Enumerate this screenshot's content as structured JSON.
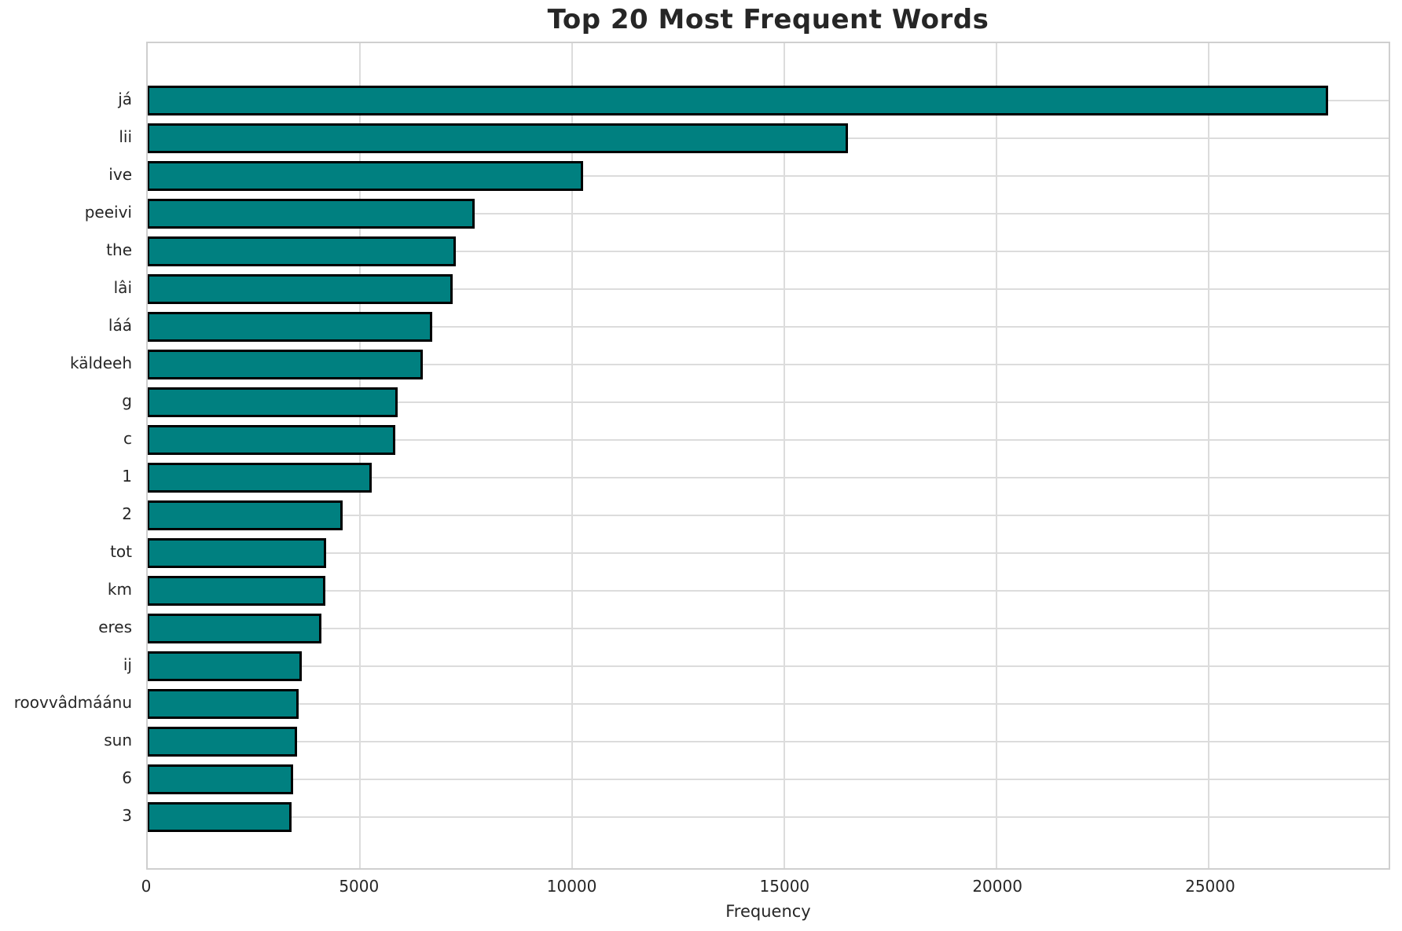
{
  "chart_data": {
    "type": "bar",
    "orientation": "horizontal",
    "title": "Top 20 Most Frequent Words",
    "xlabel": "Frequency",
    "ylabel": "",
    "categories": [
      "já",
      "lii",
      "ive",
      "peeivi",
      "the",
      "lâi",
      "láá",
      "käldeeh",
      "g",
      "c",
      "1",
      "2",
      "tot",
      "km",
      "eres",
      "ij",
      "roovvâdmáánu",
      "sun",
      "6",
      "3"
    ],
    "values": [
      27800,
      16500,
      10250,
      7700,
      7250,
      7180,
      6700,
      6480,
      5890,
      5840,
      5280,
      4600,
      4200,
      4190,
      4100,
      3620,
      3550,
      3520,
      3420,
      3380
    ],
    "xticks": [
      0,
      5000,
      10000,
      15000,
      20000,
      25000
    ],
    "xtick_labels": [
      "0",
      "5000",
      "10000",
      "15000",
      "20000",
      "25000"
    ],
    "xlim": [
      0,
      29230
    ],
    "grid": true,
    "legend": "none",
    "bar_color": "#008080",
    "bar_edge_color": "#000000",
    "grid_color": "#dcdcdc",
    "text_color": "#262626"
  }
}
